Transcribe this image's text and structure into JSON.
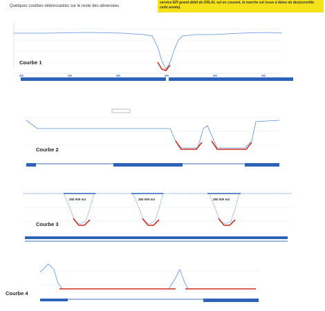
{
  "page": {
    "title": "Quelques courbes intéressantes sur le reste des déversées",
    "note": "service EPI grand débit de DRLAL sol en courant, la marche est issue à démo de dex(sensible cette année)."
  },
  "curves": [
    {
      "label": "Courbe 1"
    },
    {
      "label": "Courbe 2"
    },
    {
      "label": "Courbe 3",
      "pills": [
        "250 000 m3",
        "250 000 m3",
        "250 000 m3"
      ]
    },
    {
      "label": "Courbe 4"
    }
  ],
  "colors": {
    "line": "#5b8fd6",
    "highlight": "#d22a1a",
    "accent": "#2c62b8",
    "grid": "#e4e8ee"
  }
}
